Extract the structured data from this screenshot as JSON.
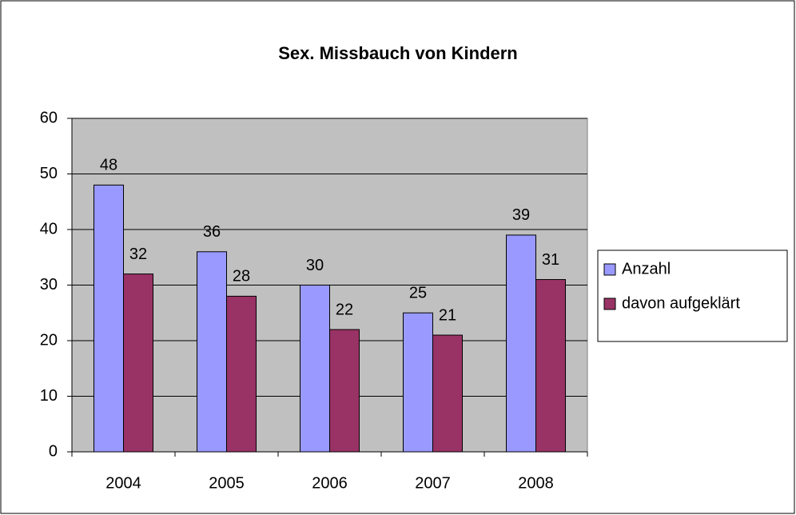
{
  "chart_data": {
    "type": "bar",
    "title": "Sex. Missbauch von Kindern",
    "categories": [
      "2004",
      "2005",
      "2006",
      "2007",
      "2008"
    ],
    "series": [
      {
        "name": "Anzahl",
        "color": "#9999ff",
        "values": [
          48,
          36,
          30,
          25,
          39
        ]
      },
      {
        "name": "davon aufgeklärt",
        "color": "#993366",
        "values": [
          32,
          28,
          22,
          21,
          31
        ]
      }
    ],
    "ylim": [
      0,
      60
    ],
    "yticks": [
      0,
      10,
      20,
      30,
      40,
      50,
      60
    ],
    "grid": true,
    "legend": "right"
  }
}
